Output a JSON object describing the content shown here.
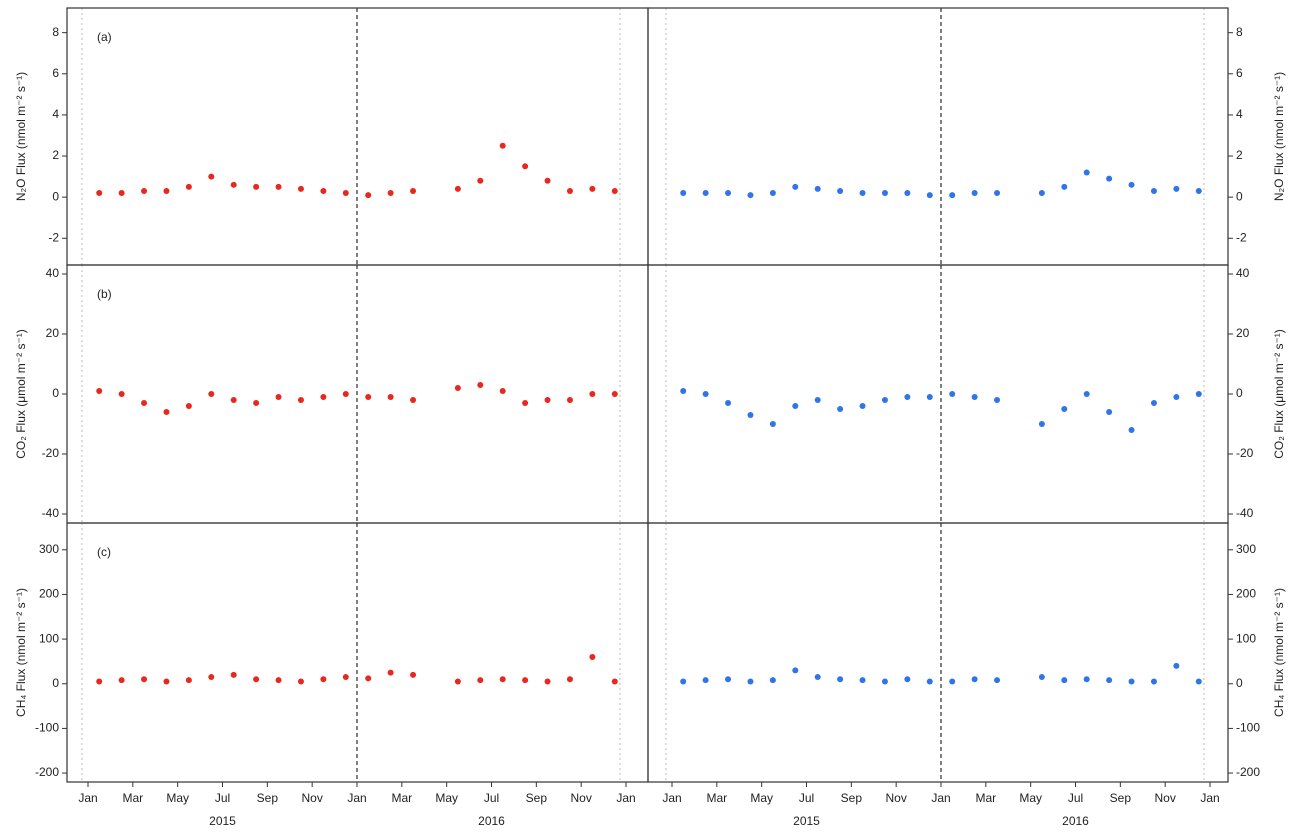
{
  "chart_data": [
    {
      "type": "scatter",
      "label": "(a)",
      "ylabel": "N₂O Flux (nmol m⁻² s⁻¹)",
      "side": "left",
      "row": 0,
      "color": "#e8281e",
      "ylim": [
        -3.3,
        9.2
      ],
      "yticks": [
        -2,
        0,
        2,
        4,
        6,
        8
      ],
      "x": [
        "2015-01",
        "2015-02",
        "2015-03",
        "2015-04",
        "2015-05",
        "2015-06",
        "2015-07",
        "2015-08",
        "2015-09",
        "2015-10",
        "2015-11",
        "2015-12",
        "2016-01",
        "2016-02",
        "2016-03",
        "2016-04",
        "2016-05",
        "2016-06",
        "2016-07",
        "2016-08",
        "2016-09",
        "2016-10",
        "2016-11",
        "2016-12"
      ],
      "values": [
        0.2,
        0.2,
        0.3,
        0.3,
        0.5,
        1.0,
        0.6,
        0.5,
        0.5,
        0.4,
        0.3,
        0.2,
        0.1,
        0.2,
        0.3,
        null,
        0.4,
        0.8,
        2.5,
        1.5,
        0.8,
        0.3,
        0.4,
        0.3
      ]
    },
    {
      "type": "scatter",
      "label": "(b)",
      "ylabel": "CO₂ Flux (μmol m⁻² s⁻¹)",
      "side": "left",
      "row": 1,
      "color": "#e8281e",
      "ylim": [
        -43,
        43
      ],
      "yticks": [
        -40,
        -20,
        0,
        20,
        40
      ],
      "x": [
        "2015-01",
        "2015-02",
        "2015-03",
        "2015-04",
        "2015-05",
        "2015-06",
        "2015-07",
        "2015-08",
        "2015-09",
        "2015-10",
        "2015-11",
        "2015-12",
        "2016-01",
        "2016-02",
        "2016-03",
        "2016-04",
        "2016-05",
        "2016-06",
        "2016-07",
        "2016-08",
        "2016-09",
        "2016-10",
        "2016-11",
        "2016-12"
      ],
      "values": [
        1,
        0,
        -3,
        -6,
        -4,
        0,
        -2,
        -3,
        -1,
        -2,
        -1,
        0,
        -1,
        -1,
        -2,
        null,
        2,
        3,
        1,
        -3,
        -2,
        -2,
        0,
        0
      ]
    },
    {
      "type": "scatter",
      "label": "(c)",
      "ylabel": "CH₄ Flux (nmol m⁻² s⁻¹)",
      "side": "left",
      "row": 2,
      "color": "#e8281e",
      "ylim": [
        -220,
        360
      ],
      "yticks": [
        -200,
        -100,
        0,
        100,
        200,
        300
      ],
      "x": [
        "2015-01",
        "2015-02",
        "2015-03",
        "2015-04",
        "2015-05",
        "2015-06",
        "2015-07",
        "2015-08",
        "2015-09",
        "2015-10",
        "2015-11",
        "2015-12",
        "2016-01",
        "2016-02",
        "2016-03",
        "2016-04",
        "2016-05",
        "2016-06",
        "2016-07",
        "2016-08",
        "2016-09",
        "2016-10",
        "2016-11",
        "2016-12"
      ],
      "values": [
        5,
        8,
        10,
        5,
        8,
        15,
        20,
        10,
        8,
        5,
        10,
        15,
        12,
        25,
        20,
        null,
        5,
        8,
        10,
        8,
        5,
        10,
        60,
        5
      ],
      "xticks": [
        {
          "value": "2015-01",
          "label": "Jan"
        },
        {
          "value": "2015-03",
          "label": "Mar"
        },
        {
          "value": "2015-05",
          "label": "May"
        },
        {
          "value": "2015-07",
          "label": "Jul"
        },
        {
          "value": "2015-09",
          "label": "Sep"
        },
        {
          "value": "2015-11",
          "label": "Nov"
        },
        {
          "value": "2016-01",
          "label": "Jan"
        },
        {
          "value": "2016-03",
          "label": "Mar"
        },
        {
          "value": "2016-05",
          "label": "May"
        },
        {
          "value": "2016-07",
          "label": "Jul"
        },
        {
          "value": "2016-09",
          "label": "Sep"
        },
        {
          "value": "2016-11",
          "label": "Nov"
        },
        {
          "value": "2017-01",
          "label": "Jan"
        }
      ],
      "years": [
        "2015",
        "2016"
      ]
    },
    {
      "type": "scatter",
      "ylabel": "N₂O Flux (nmol m⁻² s⁻¹)",
      "side": "right",
      "row": 0,
      "color": "#2f74e8",
      "ylim": [
        -3.3,
        9.2
      ],
      "yticks": [
        -2,
        0,
        2,
        4,
        6,
        8
      ],
      "x": [
        "2015-01",
        "2015-02",
        "2015-03",
        "2015-04",
        "2015-05",
        "2015-06",
        "2015-07",
        "2015-08",
        "2015-09",
        "2015-10",
        "2015-11",
        "2015-12",
        "2016-01",
        "2016-02",
        "2016-03",
        "2016-04",
        "2016-05",
        "2016-06",
        "2016-07",
        "2016-08",
        "2016-09",
        "2016-10",
        "2016-11",
        "2016-12"
      ],
      "values": [
        0.2,
        0.2,
        0.2,
        0.1,
        0.2,
        0.5,
        0.4,
        0.3,
        0.2,
        0.2,
        0.2,
        0.1,
        0.1,
        0.2,
        0.2,
        null,
        0.2,
        0.5,
        1.2,
        0.9,
        0.6,
        0.3,
        0.4,
        0.3
      ]
    },
    {
      "type": "scatter",
      "ylabel": "CO₂ Flux (μmol m⁻² s⁻¹)",
      "side": "right",
      "row": 1,
      "color": "#2f74e8",
      "ylim": [
        -43,
        43
      ],
      "yticks": [
        -40,
        -20,
        0,
        20,
        40
      ],
      "x": [
        "2015-01",
        "2015-02",
        "2015-03",
        "2015-04",
        "2015-05",
        "2015-06",
        "2015-07",
        "2015-08",
        "2015-09",
        "2015-10",
        "2015-11",
        "2015-12",
        "2016-01",
        "2016-02",
        "2016-03",
        "2016-04",
        "2016-05",
        "2016-06",
        "2016-07",
        "2016-08",
        "2016-09",
        "2016-10",
        "2016-11",
        "2016-12"
      ],
      "values": [
        1,
        0,
        -3,
        -7,
        -10,
        -4,
        -2,
        -5,
        -4,
        -2,
        -1,
        -1,
        0,
        -1,
        -2,
        null,
        -10,
        -5,
        0,
        -6,
        -12,
        -3,
        -1,
        0
      ]
    },
    {
      "type": "scatter",
      "ylabel": "CH₄ Flux (nmol m⁻² s⁻¹)",
      "side": "right",
      "row": 2,
      "color": "#2f74e8",
      "ylim": [
        -220,
        360
      ],
      "yticks": [
        -200,
        -100,
        0,
        100,
        200,
        300
      ],
      "x": [
        "2015-01",
        "2015-02",
        "2015-03",
        "2015-04",
        "2015-05",
        "2015-06",
        "2015-07",
        "2015-08",
        "2015-09",
        "2015-10",
        "2015-11",
        "2015-12",
        "2016-01",
        "2016-02",
        "2016-03",
        "2016-04",
        "2016-05",
        "2016-06",
        "2016-07",
        "2016-08",
        "2016-09",
        "2016-10",
        "2016-11",
        "2016-12"
      ],
      "values": [
        5,
        8,
        10,
        5,
        8,
        30,
        15,
        10,
        8,
        5,
        10,
        5,
        5,
        10,
        8,
        null,
        15,
        8,
        10,
        8,
        5,
        5,
        40,
        5
      ],
      "xticks": [
        {
          "value": "2015-01",
          "label": "Jan"
        },
        {
          "value": "2015-03",
          "label": "Mar"
        },
        {
          "value": "2015-05",
          "label": "May"
        },
        {
          "value": "2015-07",
          "label": "Jul"
        },
        {
          "value": "2015-09",
          "label": "Sep"
        },
        {
          "value": "2015-11",
          "label": "Nov"
        },
        {
          "value": "2016-01",
          "label": "Jan"
        },
        {
          "value": "2016-03",
          "label": "Mar"
        },
        {
          "value": "2016-05",
          "label": "May"
        },
        {
          "value": "2016-07",
          "label": "Jul"
        },
        {
          "value": "2016-09",
          "label": "Sep"
        },
        {
          "value": "2016-11",
          "label": "Nov"
        },
        {
          "value": "2017-01",
          "label": "Jan"
        }
      ],
      "years": [
        "2015",
        "2016"
      ]
    }
  ]
}
